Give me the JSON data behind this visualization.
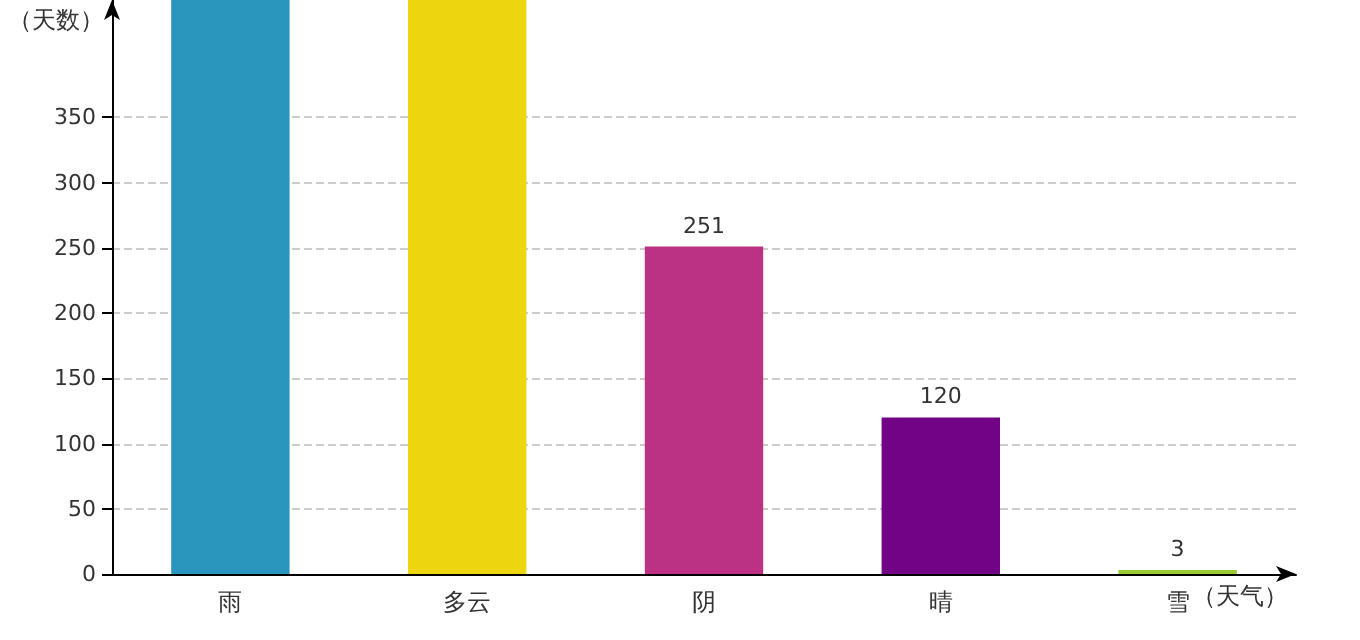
{
  "chart_data": {
    "type": "bar",
    "ylabel": "（天数）",
    "xlabel": "（天气）",
    "categories": [
      "雨",
      "多云",
      "阴",
      "晴",
      "雪"
    ],
    "values": [
      440,
      440,
      251,
      120,
      3
    ],
    "colors": [
      "#2a95bd",
      "#edd50f",
      "#bb3284",
      "#720386",
      "#99cc33"
    ],
    "value_labels": [
      null,
      null,
      "251",
      "120",
      "3"
    ],
    "ylim": [
      0,
      440
    ],
    "yticks": [
      0,
      50,
      100,
      150,
      200,
      250,
      300,
      350
    ],
    "grid": "y"
  }
}
